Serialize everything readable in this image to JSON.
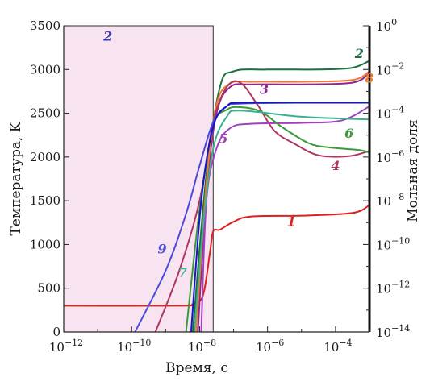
{
  "chart_data": {
    "type": "line",
    "xlabel": "Время, с",
    "ylabel_left": "Температура, K",
    "ylabel_right": "Мольная доля",
    "x_scale": "log",
    "xlim": [
      1e-12,
      0.001
    ],
    "ylim_left": [
      0,
      3500
    ],
    "ylim_right_log10": [
      -14,
      0
    ],
    "grid": false,
    "x_ticks": [
      {
        "base": "10",
        "exp": "−12",
        "value": -12
      },
      {
        "base": "10",
        "exp": "−10",
        "value": -10
      },
      {
        "base": "10",
        "exp": "−8",
        "value": -8
      },
      {
        "base": "10",
        "exp": "−6",
        "value": -6
      },
      {
        "base": "10",
        "exp": "−4",
        "value": -4
      }
    ],
    "y_left_ticks": [
      "0",
      "500",
      "1000",
      "1500",
      "2000",
      "2500",
      "3000",
      "3500"
    ],
    "y_right_ticks": [
      {
        "base": "10",
        "exp": "−14",
        "value": -14
      },
      {
        "base": "10",
        "exp": "−12",
        "value": -12
      },
      {
        "base": "10",
        "exp": "−10",
        "value": -10
      },
      {
        "base": "10",
        "exp": "−8",
        "value": -8
      },
      {
        "base": "10",
        "exp": "−6",
        "value": -6
      },
      {
        "base": "10",
        "exp": "−4",
        "value": -4
      },
      {
        "base": "10",
        "exp": "−2",
        "value": -2
      },
      {
        "base": "10",
        "exp": "0",
        "value": 0
      }
    ],
    "shaded_region": {
      "x_from_log10": -12,
      "x_to_log10": -7.6,
      "color": "#f8e4f0",
      "label": "2",
      "label_color": "#3a3ab8",
      "label_at": [
        -10.7,
        3330
      ]
    },
    "series": [
      {
        "label": "1",
        "color": "#e02020",
        "label_at": [
          -5.3,
          1210
        ],
        "points": [
          [
            -12,
            300
          ],
          [
            -8.6,
            300
          ],
          [
            -8.2,
            320
          ],
          [
            -7.9,
            420
          ],
          [
            -7.7,
            900
          ],
          [
            -7.6,
            1150
          ],
          [
            -7.4,
            1170
          ],
          [
            -7.0,
            1260
          ],
          [
            -6.5,
            1320
          ],
          [
            -5.0,
            1330
          ],
          [
            -3.5,
            1360
          ],
          [
            -3.0,
            1450
          ]
        ]
      },
      {
        "label": "2",
        "color": "#1a7040",
        "label_at": [
          -3.3,
          3130
        ],
        "points": [
          [
            -8.2,
            0
          ],
          [
            -7.8,
            1800
          ],
          [
            -7.4,
            2800
          ],
          [
            -7.0,
            2980
          ],
          [
            -6.0,
            3000
          ],
          [
            -4.5,
            3000
          ],
          [
            -3.5,
            3020
          ],
          [
            -3.0,
            3100
          ]
        ]
      },
      {
        "label": "3",
        "color": "#8e2590",
        "label_at": [
          -6.1,
          2720
        ],
        "points": [
          [
            -8.05,
            0
          ],
          [
            -7.8,
            1600
          ],
          [
            -7.5,
            2500
          ],
          [
            -7.1,
            2800
          ],
          [
            -6.5,
            2830
          ],
          [
            -5.0,
            2830
          ],
          [
            -3.5,
            2850
          ],
          [
            -3.0,
            2960
          ]
        ]
      },
      {
        "label": "8",
        "color": "#f07a30",
        "label_at": [
          -3.0,
          2850
        ],
        "points": [
          [
            -8.1,
            0
          ],
          [
            -7.8,
            1700
          ],
          [
            -7.5,
            2600
          ],
          [
            -7.1,
            2840
          ],
          [
            -6.5,
            2860
          ],
          [
            -5.0,
            2860
          ],
          [
            -3.5,
            2880
          ],
          [
            -3.0,
            2980
          ]
        ]
      },
      {
        "label": "4",
        "color": "#b03560",
        "label_at": [
          -4.0,
          1850
        ],
        "points": [
          [
            -9.3,
            0
          ],
          [
            -8.6,
            700
          ],
          [
            -8.0,
            1500
          ],
          [
            -7.6,
            2400
          ],
          [
            -7.2,
            2800
          ],
          [
            -6.8,
            2850
          ],
          [
            -6.3,
            2600
          ],
          [
            -5.8,
            2300
          ],
          [
            -5.2,
            2150
          ],
          [
            -4.5,
            2020
          ],
          [
            -3.6,
            2010
          ],
          [
            -3.0,
            2070
          ]
        ]
      },
      {
        "label": "5",
        "color": "#a040c0",
        "label_at": [
          -7.3,
          2160
        ],
        "points": [
          [
            -7.95,
            0
          ],
          [
            -7.8,
            1500
          ],
          [
            -7.5,
            2100
          ],
          [
            -7.1,
            2330
          ],
          [
            -6.5,
            2380
          ],
          [
            -5.0,
            2390
          ],
          [
            -3.8,
            2420
          ],
          [
            -3.0,
            2580
          ]
        ]
      },
      {
        "label": "6",
        "color": "#3a9a38",
        "label_at": [
          -3.6,
          2220
        ],
        "points": [
          [
            -8.4,
            0
          ],
          [
            -8.0,
            1400
          ],
          [
            -7.6,
            2350
          ],
          [
            -7.2,
            2540
          ],
          [
            -6.8,
            2570
          ],
          [
            -6.2,
            2520
          ],
          [
            -5.6,
            2350
          ],
          [
            -4.8,
            2160
          ],
          [
            -4.2,
            2110
          ],
          [
            -3.3,
            2080
          ],
          [
            -3.0,
            2050
          ]
        ]
      },
      {
        "label": "9",
        "color": "#4a4adc",
        "label_at": [
          -9.1,
          900
        ],
        "points": [
          [
            -9.9,
            0
          ],
          [
            -9.0,
            700
          ],
          [
            -8.4,
            1350
          ],
          [
            -8.0,
            1900
          ],
          [
            -7.6,
            2400
          ],
          [
            -7.2,
            2580
          ],
          [
            -6.8,
            2610
          ],
          [
            -5.0,
            2620
          ],
          [
            -3.0,
            2620
          ]
        ]
      },
      {
        "label": "7",
        "color": "#3ab090",
        "label_at": [
          -8.5,
          630
        ],
        "points": [
          [
            -8.15,
            0
          ],
          [
            -7.9,
            1200
          ],
          [
            -7.6,
            2100
          ],
          [
            -7.2,
            2460
          ],
          [
            -6.8,
            2530
          ],
          [
            -5.0,
            2460
          ],
          [
            -3.0,
            2430
          ]
        ]
      },
      {
        "label": "",
        "color": "#1515c8",
        "points": [
          [
            -8.25,
            0
          ],
          [
            -7.95,
            1500
          ],
          [
            -7.6,
            2350
          ],
          [
            -7.2,
            2580
          ],
          [
            -6.8,
            2620
          ],
          [
            -5.0,
            2620
          ],
          [
            -3.0,
            2620
          ]
        ]
      }
    ]
  }
}
